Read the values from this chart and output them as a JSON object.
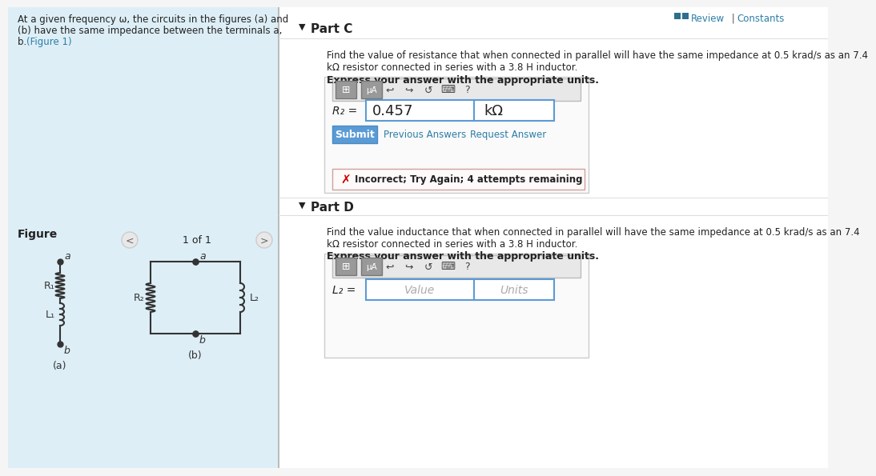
{
  "bg_color": "#f5f5f5",
  "white": "#ffffff",
  "light_blue_bg": "#ddeef6",
  "border_gray": "#cccccc",
  "border_blue": "#5b9bd5",
  "text_dark": "#222222",
  "text_gray": "#666666",
  "text_blue": "#2e7da6",
  "teal_dark": "#2e6e8e",
  "submit_blue": "#5b9bd5",
  "submit_text": "#ffffff",
  "error_red": "#cc0000",
  "toolbar_bg": "#d8d8d8",
  "toolbar_btn": "#888888",
  "input_border": "#5b9bd5",
  "left_panel_text1": "At a given frequency ω, the circuits in the figures (a) and",
  "left_panel_text2": "(b) have the same impedance between the terminals a,",
  "left_panel_text3": "b. (Figure 1)",
  "figure_label": "Figure",
  "figure_nav": "1 of 1",
  "part_c_label": "Part C",
  "part_c_q1": "Find the value of resistance that when connected in parallel will have the same impedance at 0.5 krad/s as an 7.4",
  "part_c_q2": "kΩ resistor connected in series with a 3.8 H inductor.",
  "express_answer": "Express your answer with the appropriate units.",
  "R2_value": "0.457",
  "R2_units": "kΩ",
  "submit_label": "Submit",
  "prev_answers": "Previous Answers",
  "request_answer": "Request Answer",
  "incorrect_text": "Incorrect; Try Again; 4 attempts remaining",
  "part_d_label": "Part D",
  "part_d_q1": "Find the value inductance that when connected in parallel will have the same impedance at 0.5 krad/s as an 7.4",
  "part_d_q2": "kΩ resistor connected in series with a 3.8 H inductor.",
  "L2_placeholder_val": "Value",
  "L2_placeholder_units": "Units"
}
